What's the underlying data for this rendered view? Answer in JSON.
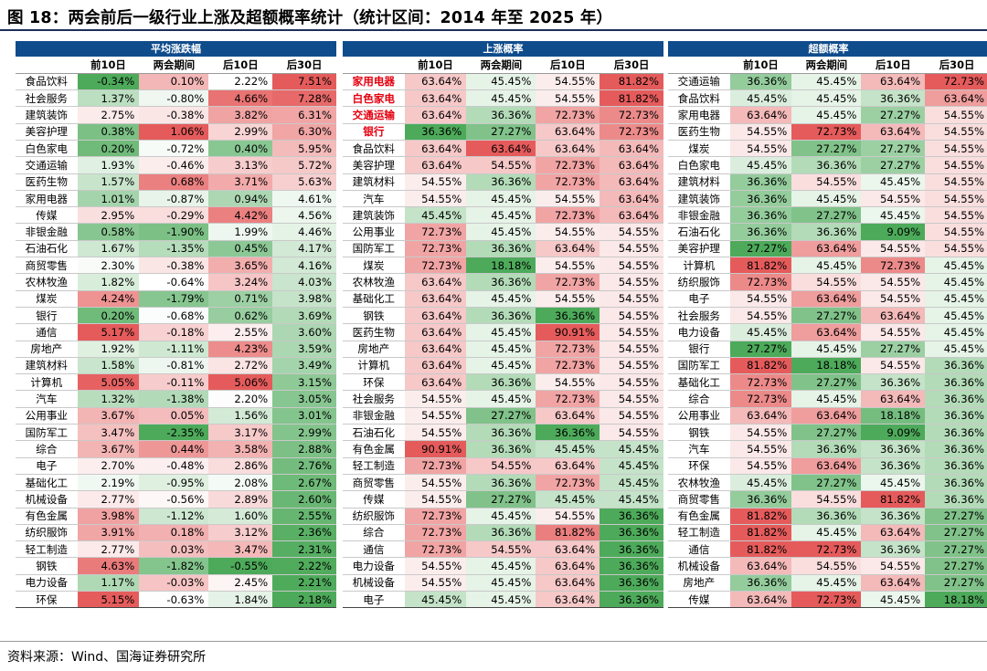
{
  "title": "图 18：两会前后一级行业上涨及超额概率统计（统计区间：2014 年至 2025 年）",
  "source": "资料来源：Wind、国海证券研究所",
  "columns": [
    "前10日",
    "两会期间",
    "后10日",
    "后30日"
  ],
  "colors": {
    "header_bg": "#0f4c8c",
    "positive": "#e55b5b",
    "negative": "#4daa5a",
    "highlight_text": "#e4000f"
  },
  "panels": [
    {
      "title": "平均涨跌幅",
      "kind": "return",
      "rows": [
        [
          "食品饮料",
          "-0.34%",
          "0.10%",
          "2.22%",
          "7.51%"
        ],
        [
          "社会服务",
          "1.37%",
          "-0.80%",
          "4.66%",
          "7.28%"
        ],
        [
          "建筑装饰",
          "2.75%",
          "-0.38%",
          "3.82%",
          "6.31%"
        ],
        [
          "美容护理",
          "0.38%",
          "1.06%",
          "2.99%",
          "6.30%"
        ],
        [
          "白色家电",
          "0.20%",
          "-0.72%",
          "0.40%",
          "5.95%"
        ],
        [
          "交通运输",
          "1.93%",
          "-0.46%",
          "3.13%",
          "5.72%"
        ],
        [
          "医药生物",
          "1.57%",
          "0.68%",
          "3.71%",
          "5.63%"
        ],
        [
          "家用电器",
          "1.01%",
          "-0.87%",
          "0.94%",
          "4.61%"
        ],
        [
          "传媒",
          "2.95%",
          "-0.29%",
          "4.42%",
          "4.56%"
        ],
        [
          "非银金融",
          "0.58%",
          "-1.90%",
          "1.99%",
          "4.46%"
        ],
        [
          "石油石化",
          "1.67%",
          "-1.35%",
          "0.45%",
          "4.17%"
        ],
        [
          "商贸零售",
          "2.30%",
          "-0.38%",
          "3.65%",
          "4.16%"
        ],
        [
          "农林牧渔",
          "1.82%",
          "-0.64%",
          "3.24%",
          "4.03%"
        ],
        [
          "煤炭",
          "4.24%",
          "-1.79%",
          "0.71%",
          "3.98%"
        ],
        [
          "银行",
          "0.20%",
          "-0.68%",
          "0.62%",
          "3.69%"
        ],
        [
          "通信",
          "5.17%",
          "-0.18%",
          "2.55%",
          "3.60%"
        ],
        [
          "房地产",
          "1.92%",
          "-1.11%",
          "4.23%",
          "3.59%"
        ],
        [
          "建筑材料",
          "1.58%",
          "-0.81%",
          "2.72%",
          "3.49%"
        ],
        [
          "计算机",
          "5.05%",
          "-0.11%",
          "5.06%",
          "3.15%"
        ],
        [
          "汽车",
          "1.32%",
          "-1.38%",
          "2.20%",
          "3.05%"
        ],
        [
          "公用事业",
          "3.67%",
          "0.05%",
          "1.56%",
          "3.01%"
        ],
        [
          "国防军工",
          "3.47%",
          "-2.35%",
          "3.17%",
          "2.99%"
        ],
        [
          "综合",
          "3.67%",
          "0.44%",
          "3.58%",
          "2.88%"
        ],
        [
          "电子",
          "2.70%",
          "-0.48%",
          "2.86%",
          "2.76%"
        ],
        [
          "基础化工",
          "2.19%",
          "-0.95%",
          "2.08%",
          "2.67%"
        ],
        [
          "机械设备",
          "2.77%",
          "-0.56%",
          "2.89%",
          "2.60%"
        ],
        [
          "有色金属",
          "3.98%",
          "-1.12%",
          "1.60%",
          "2.55%"
        ],
        [
          "纺织服饰",
          "3.91%",
          "0.18%",
          "3.12%",
          "2.36%"
        ],
        [
          "轻工制造",
          "2.77%",
          "0.03%",
          "3.47%",
          "2.31%"
        ],
        [
          "钢铁",
          "4.63%",
          "-1.82%",
          "-0.55%",
          "2.22%"
        ],
        [
          "电力设备",
          "1.17%",
          "-0.03%",
          "2.45%",
          "2.21%"
        ],
        [
          "环保",
          "5.15%",
          "-0.63%",
          "1.84%",
          "2.18%"
        ]
      ]
    },
    {
      "title": "上涨概率",
      "kind": "prob",
      "highlight": [
        "家用电器",
        "白色家电",
        "交通运输",
        "银行"
      ],
      "rows": [
        [
          "家用电器",
          "63.64%",
          "45.45%",
          "54.55%",
          "81.82%"
        ],
        [
          "白色家电",
          "63.64%",
          "45.45%",
          "54.55%",
          "81.82%"
        ],
        [
          "交通运输",
          "63.64%",
          "36.36%",
          "72.73%",
          "72.73%"
        ],
        [
          "银行",
          "36.36%",
          "27.27%",
          "63.64%",
          "72.73%"
        ],
        [
          "食品饮料",
          "63.64%",
          "63.64%",
          "63.64%",
          "63.64%"
        ],
        [
          "美容护理",
          "63.64%",
          "54.55%",
          "72.73%",
          "63.64%"
        ],
        [
          "建筑材料",
          "54.55%",
          "36.36%",
          "72.73%",
          "63.64%"
        ],
        [
          "汽车",
          "54.55%",
          "45.45%",
          "54.55%",
          "63.64%"
        ],
        [
          "建筑装饰",
          "45.45%",
          "45.45%",
          "72.73%",
          "63.64%"
        ],
        [
          "公用事业",
          "72.73%",
          "45.45%",
          "54.55%",
          "54.55%"
        ],
        [
          "国防军工",
          "72.73%",
          "36.36%",
          "63.64%",
          "54.55%"
        ],
        [
          "煤炭",
          "72.73%",
          "18.18%",
          "54.55%",
          "54.55%"
        ],
        [
          "农林牧渔",
          "63.64%",
          "36.36%",
          "72.73%",
          "54.55%"
        ],
        [
          "基础化工",
          "63.64%",
          "45.45%",
          "54.55%",
          "54.55%"
        ],
        [
          "钢铁",
          "63.64%",
          "36.36%",
          "36.36%",
          "54.55%"
        ],
        [
          "医药生物",
          "63.64%",
          "45.45%",
          "90.91%",
          "54.55%"
        ],
        [
          "房地产",
          "63.64%",
          "45.45%",
          "72.73%",
          "54.55%"
        ],
        [
          "计算机",
          "63.64%",
          "45.45%",
          "72.73%",
          "54.55%"
        ],
        [
          "环保",
          "63.64%",
          "36.36%",
          "54.55%",
          "54.55%"
        ],
        [
          "社会服务",
          "54.55%",
          "45.45%",
          "72.73%",
          "54.55%"
        ],
        [
          "非银金融",
          "54.55%",
          "27.27%",
          "63.64%",
          "54.55%"
        ],
        [
          "石油石化",
          "54.55%",
          "36.36%",
          "36.36%",
          "54.55%"
        ],
        [
          "有色金属",
          "90.91%",
          "36.36%",
          "45.45%",
          "45.45%"
        ],
        [
          "轻工制造",
          "72.73%",
          "54.55%",
          "63.64%",
          "45.45%"
        ],
        [
          "商贸零售",
          "54.55%",
          "36.36%",
          "72.73%",
          "45.45%"
        ],
        [
          "传媒",
          "54.55%",
          "27.27%",
          "45.45%",
          "45.45%"
        ],
        [
          "纺织服饰",
          "72.73%",
          "45.45%",
          "54.55%",
          "36.36%"
        ],
        [
          "综合",
          "72.73%",
          "36.36%",
          "81.82%",
          "36.36%"
        ],
        [
          "通信",
          "72.73%",
          "54.55%",
          "63.64%",
          "36.36%"
        ],
        [
          "电力设备",
          "54.55%",
          "45.45%",
          "63.64%",
          "36.36%"
        ],
        [
          "机械设备",
          "54.55%",
          "45.45%",
          "63.64%",
          "36.36%"
        ],
        [
          "电子",
          "45.45%",
          "45.45%",
          "63.64%",
          "36.36%"
        ]
      ]
    },
    {
      "title": "超额概率",
      "kind": "prob",
      "highlight": [],
      "rows": [
        [
          "交通运输",
          "36.36%",
          "45.45%",
          "63.64%",
          "72.73%"
        ],
        [
          "食品饮料",
          "45.45%",
          "45.45%",
          "36.36%",
          "63.64%"
        ],
        [
          "家用电器",
          "63.64%",
          "45.45%",
          "27.27%",
          "54.55%"
        ],
        [
          "医药生物",
          "54.55%",
          "72.73%",
          "63.64%",
          "54.55%"
        ],
        [
          "煤炭",
          "54.55%",
          "27.27%",
          "27.27%",
          "54.55%"
        ],
        [
          "白色家电",
          "45.45%",
          "36.36%",
          "27.27%",
          "54.55%"
        ],
        [
          "建筑材料",
          "36.36%",
          "54.55%",
          "45.45%",
          "54.55%"
        ],
        [
          "建筑装饰",
          "36.36%",
          "45.45%",
          "54.55%",
          "54.55%"
        ],
        [
          "非银金融",
          "36.36%",
          "27.27%",
          "45.45%",
          "54.55%"
        ],
        [
          "石油石化",
          "36.36%",
          "36.36%",
          "9.09%",
          "54.55%"
        ],
        [
          "美容护理",
          "27.27%",
          "63.64%",
          "54.55%",
          "54.55%"
        ],
        [
          "计算机",
          "81.82%",
          "45.45%",
          "72.73%",
          "45.45%"
        ],
        [
          "纺织服饰",
          "72.73%",
          "54.55%",
          "54.55%",
          "45.45%"
        ],
        [
          "电子",
          "54.55%",
          "63.64%",
          "54.55%",
          "45.45%"
        ],
        [
          "社会服务",
          "54.55%",
          "27.27%",
          "63.64%",
          "45.45%"
        ],
        [
          "电力设备",
          "45.45%",
          "63.64%",
          "54.55%",
          "45.45%"
        ],
        [
          "银行",
          "27.27%",
          "45.45%",
          "27.27%",
          "45.45%"
        ],
        [
          "国防军工",
          "81.82%",
          "18.18%",
          "54.55%",
          "36.36%"
        ],
        [
          "基础化工",
          "72.73%",
          "27.27%",
          "36.36%",
          "36.36%"
        ],
        [
          "综合",
          "72.73%",
          "45.45%",
          "63.64%",
          "36.36%"
        ],
        [
          "公用事业",
          "63.64%",
          "63.64%",
          "18.18%",
          "36.36%"
        ],
        [
          "钢铁",
          "54.55%",
          "27.27%",
          "9.09%",
          "36.36%"
        ],
        [
          "汽车",
          "54.55%",
          "36.36%",
          "36.36%",
          "36.36%"
        ],
        [
          "环保",
          "54.55%",
          "63.64%",
          "36.36%",
          "36.36%"
        ],
        [
          "农林牧渔",
          "45.45%",
          "27.27%",
          "45.45%",
          "36.36%"
        ],
        [
          "商贸零售",
          "36.36%",
          "54.55%",
          "81.82%",
          "36.36%"
        ],
        [
          "有色金属",
          "81.82%",
          "36.36%",
          "36.36%",
          "27.27%"
        ],
        [
          "轻工制造",
          "81.82%",
          "45.45%",
          "63.64%",
          "27.27%"
        ],
        [
          "通信",
          "81.82%",
          "72.73%",
          "36.36%",
          "27.27%"
        ],
        [
          "机械设备",
          "63.64%",
          "54.55%",
          "54.55%",
          "27.27%"
        ],
        [
          "房地产",
          "36.36%",
          "45.45%",
          "63.64%",
          "27.27%"
        ],
        [
          "传媒",
          "63.64%",
          "72.73%",
          "45.45%",
          "18.18%"
        ]
      ]
    }
  ]
}
